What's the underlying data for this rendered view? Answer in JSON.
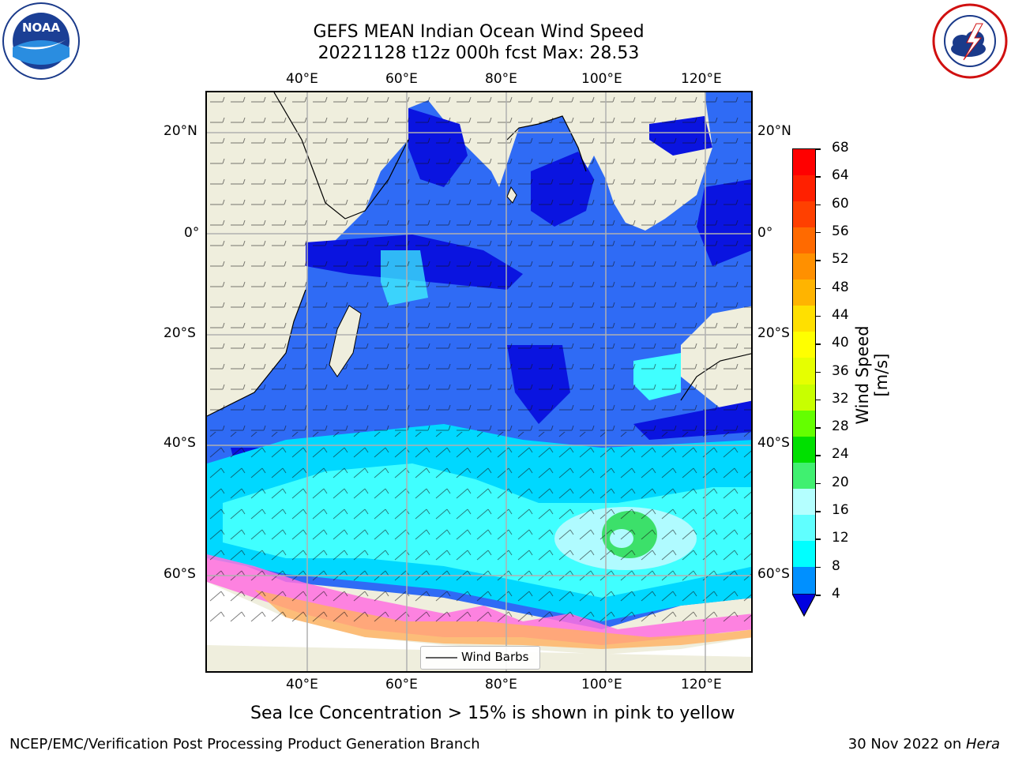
{
  "header": {
    "title_line1": "GEFS MEAN Indian Ocean Wind Speed",
    "title_line2": "20221128 t12z 000h fcst   Max: 28.53"
  },
  "logos": {
    "left": {
      "name": "NOAA",
      "text": "NOAA"
    },
    "right": {
      "name": "National Weather Service",
      "ring_text": "NATIONAL WEATHER SERVICE"
    }
  },
  "map": {
    "lon_ticks": [
      "40°E",
      "60°E",
      "80°E",
      "100°E",
      "120°E"
    ],
    "lat_ticks_left": [
      "20°N",
      "0°",
      "20°S",
      "40°S",
      "60°S"
    ],
    "lat_ticks_right": [
      "20°N",
      "0°",
      "20°S",
      "40°S",
      "60°S"
    ],
    "legend_label": "Wind Barbs"
  },
  "colorbar": {
    "label": "Wind Speed [m/s]",
    "ticks": [
      "68",
      "64",
      "60",
      "56",
      "52",
      "48",
      "44",
      "40",
      "36",
      "32",
      "28",
      "24",
      "20",
      "16",
      "12",
      "8",
      "4"
    ],
    "colors": [
      "#ff0000",
      "#ff2000",
      "#ff4000",
      "#ff6a00",
      "#ff9000",
      "#ffb400",
      "#ffe000",
      "#ffff00",
      "#e6ff00",
      "#c8ff00",
      "#64ff00",
      "#00e000",
      "#40f070",
      "#b4ffff",
      "#60ffff",
      "#00ffff",
      "#0090ff"
    ],
    "extend_color": "#0000e0"
  },
  "annotations": {
    "sea_ice_note": "Sea Ice Concentration > 15% is shown in pink to yellow",
    "footer_left": "NCEP/EMC/Verification Post Processing Product Generation Branch",
    "footer_right_date": "30 Nov 2022 on ",
    "footer_right_host": "Hera"
  }
}
